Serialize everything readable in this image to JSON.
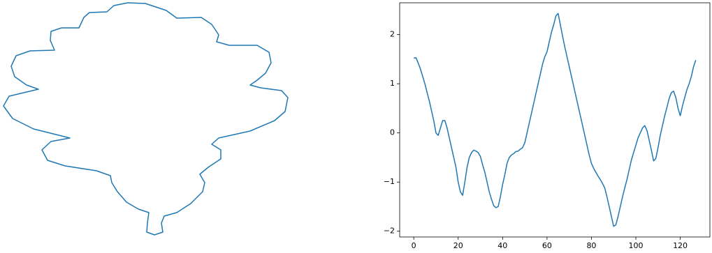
{
  "chart_data": [
    {
      "type": "curve",
      "color": "#1f77b4",
      "x": [
        185,
        210,
        240,
        255,
        290,
        305,
        315,
        312,
        330,
        370,
        387,
        390,
        382,
        370,
        360,
        375,
        405,
        414,
        410,
        395,
        360,
        315,
        305,
        318,
        318,
        300,
        288,
        295,
        292,
        275,
        255,
        237,
        233,
        235,
        223,
        212,
        213,
        215,
        200,
        183,
        170,
        162,
        160,
        140,
        95,
        70,
        62,
        75,
        102,
        90,
        50,
        20,
        7,
        15,
        40,
        57,
        40,
        23,
        18,
        25,
        45,
        80,
        74,
        75,
        90,
        115,
        122,
        130,
        155,
        165,
        185
      ],
      "y": [
        336,
        335,
        325,
        314,
        315,
        305,
        290,
        280,
        275,
        275,
        265,
        250,
        235,
        225,
        218,
        214,
        210,
        200,
        180,
        167,
        152,
        142,
        133,
        125,
        112,
        100,
        90,
        78,
        65,
        48,
        35,
        30,
        20,
        7,
        3,
        7,
        20,
        35,
        40,
        50,
        65,
        78,
        88,
        95,
        102,
        110,
        125,
        137,
        142,
        145,
        155,
        170,
        188,
        202,
        208,
        212,
        218,
        230,
        245,
        260,
        267,
        268,
        282,
        295,
        300,
        300,
        315,
        322,
        323,
        332,
        336
      ]
    },
    {
      "type": "line",
      "color": "#1f77b4",
      "x": [
        0,
        1,
        2,
        3,
        4,
        5,
        6,
        7,
        8,
        9,
        10,
        11,
        12,
        13,
        14,
        15,
        16,
        17,
        18,
        19,
        20,
        21,
        22,
        23,
        24,
        25,
        26,
        27,
        28,
        29,
        30,
        31,
        32,
        33,
        34,
        35,
        36,
        37,
        38,
        39,
        40,
        41,
        42,
        43,
        44,
        45,
        46,
        47,
        48,
        49,
        50,
        51,
        52,
        53,
        54,
        55,
        56,
        57,
        58,
        59,
        60,
        61,
        62,
        63,
        64,
        65,
        66,
        67,
        68,
        69,
        70,
        71,
        72,
        73,
        74,
        75,
        76,
        77,
        78,
        79,
        80,
        81,
        82,
        83,
        84,
        85,
        86,
        87,
        88,
        89,
        90,
        91,
        92,
        93,
        94,
        95,
        96,
        97,
        98,
        99,
        100,
        101,
        102,
        103,
        104,
        105,
        106,
        107,
        108,
        109,
        110,
        111,
        112,
        113,
        114,
        115,
        116,
        117,
        118,
        119,
        120,
        121,
        122,
        123,
        124,
        125,
        126,
        127
      ],
      "values": [
        1.52,
        1.53,
        1.42,
        1.3,
        1.15,
        1.0,
        0.82,
        0.65,
        0.45,
        0.25,
        0.0,
        -0.05,
        0.1,
        0.25,
        0.25,
        0.1,
        -0.1,
        -0.3,
        -0.5,
        -0.7,
        -1.0,
        -1.2,
        -1.27,
        -1.0,
        -0.7,
        -0.5,
        -0.4,
        -0.35,
        -0.37,
        -0.4,
        -0.48,
        -0.65,
        -0.8,
        -1.0,
        -1.2,
        -1.35,
        -1.48,
        -1.52,
        -1.5,
        -1.3,
        -1.05,
        -0.85,
        -0.62,
        -0.5,
        -0.45,
        -0.42,
        -0.38,
        -0.37,
        -0.33,
        -0.3,
        -0.2,
        0.0,
        0.2,
        0.4,
        0.6,
        0.8,
        1.0,
        1.2,
        1.4,
        1.55,
        1.65,
        1.85,
        2.05,
        2.2,
        2.38,
        2.43,
        2.2,
        1.97,
        1.75,
        1.55,
        1.35,
        1.15,
        0.95,
        0.75,
        0.55,
        0.35,
        0.15,
        -0.05,
        -0.25,
        -0.45,
        -0.62,
        -0.72,
        -0.8,
        -0.88,
        -0.95,
        -1.03,
        -1.12,
        -1.3,
        -1.5,
        -1.7,
        -1.9,
        -1.87,
        -1.7,
        -1.5,
        -1.3,
        -1.12,
        -0.95,
        -0.75,
        -0.55,
        -0.4,
        -0.25,
        -0.1,
        0.0,
        0.1,
        0.15,
        0.05,
        -0.15,
        -0.35,
        -0.57,
        -0.52,
        -0.3,
        -0.05,
        0.15,
        0.35,
        0.52,
        0.7,
        0.82,
        0.85,
        0.72,
        0.5,
        0.35,
        0.55,
        0.72,
        0.88,
        1.0,
        1.15,
        1.35,
        1.48
      ],
      "xlim": [
        -6.35,
        133.35
      ],
      "ylim": [
        -2.117,
        2.647
      ],
      "xticks": [
        0,
        20,
        40,
        60,
        80,
        100,
        120
      ],
      "yticks": [
        {
          "value": -2,
          "label": "−2"
        },
        {
          "value": -1,
          "label": "−1"
        },
        0,
        1,
        2
      ]
    }
  ]
}
